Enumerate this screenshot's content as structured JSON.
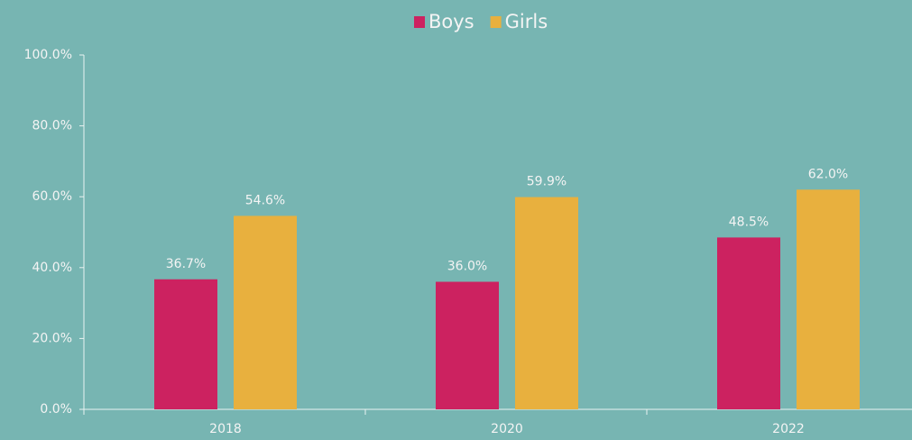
{
  "chart_data": {
    "type": "bar",
    "categories": [
      "2018",
      "2020",
      "2022"
    ],
    "series": [
      {
        "name": "Boys",
        "color": "#cc2260",
        "values": [
          36.7,
          36.0,
          48.5
        ],
        "value_labels": [
          "36.7%",
          "36.0%",
          "48.5%"
        ]
      },
      {
        "name": "Girls",
        "color": "#e8b03e",
        "values": [
          54.6,
          59.9,
          62.0
        ],
        "value_labels": [
          "54.6%",
          "59.9%",
          "62.0%"
        ]
      }
    ],
    "ylim": [
      0,
      100
    ],
    "yticks": [
      {
        "value": 0,
        "label": "0.0%"
      },
      {
        "value": 20,
        "label": "20.0%"
      },
      {
        "value": 40,
        "label": "40.0%"
      },
      {
        "value": 60,
        "label": "60.0%"
      },
      {
        "value": 80,
        "label": "80.0%"
      },
      {
        "value": 100,
        "label": "100.0%"
      }
    ],
    "legend": "top"
  }
}
